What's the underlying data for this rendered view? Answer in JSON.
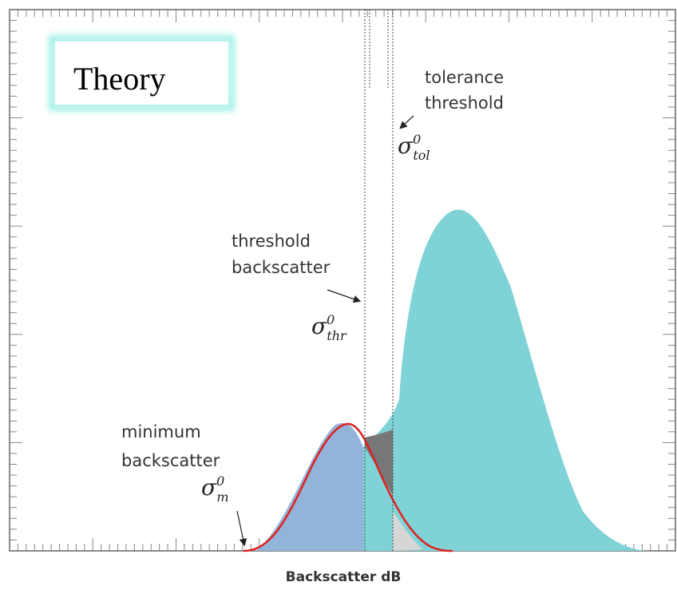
{
  "title": "Theory",
  "x_axis_label": "Backscatter dB",
  "annotations": [
    {
      "lines": [
        "tolerance",
        "threshold"
      ],
      "symbol": "σ",
      "sup": "0",
      "sub": "tol"
    },
    {
      "lines": [
        "threshold",
        "backscatter"
      ],
      "symbol": "σ",
      "sup": "0",
      "sub": "thr"
    },
    {
      "lines": [
        "minimum",
        "backscatter"
      ],
      "symbol": "σ",
      "sup": "0",
      "sub": "m"
    }
  ]
}
